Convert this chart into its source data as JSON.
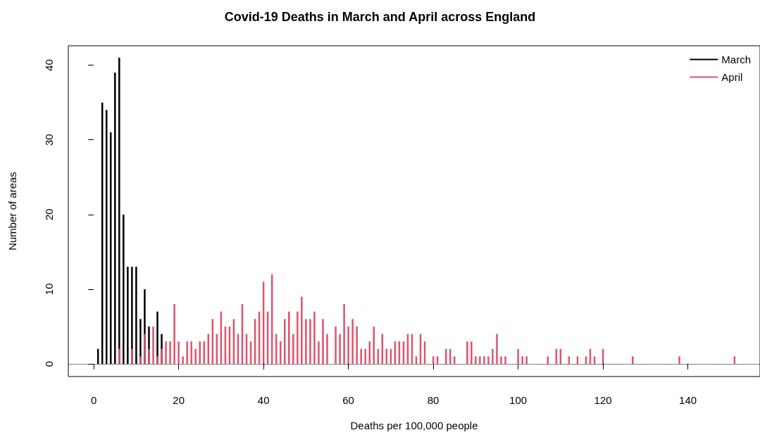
{
  "chart_data": {
    "type": "bar",
    "title": "Covid-19 Deaths in March and April across England",
    "xlabel": "Deaths per 100,000 people",
    "ylabel": "Number of areas",
    "series": [
      {
        "name": "March",
        "color": "#000000",
        "x": [
          1,
          2,
          3,
          4,
          5,
          6,
          7,
          8,
          9,
          10,
          11,
          12,
          13,
          15,
          16
        ],
        "values": [
          2,
          35,
          34,
          31,
          39,
          41,
          20,
          13,
          13,
          13,
          6,
          10,
          5,
          7,
          4
        ]
      },
      {
        "name": "April",
        "color": "#df536b",
        "x": [
          6,
          9,
          11,
          12,
          13,
          14,
          15,
          16,
          17,
          18,
          19,
          20,
          21,
          22,
          23,
          24,
          25,
          26,
          27,
          28,
          29,
          30,
          31,
          32,
          33,
          34,
          35,
          36,
          37,
          38,
          39,
          40,
          41,
          42,
          43,
          44,
          45,
          46,
          47,
          48,
          49,
          50,
          51,
          52,
          53,
          54,
          55,
          57,
          58,
          59,
          60,
          61,
          62,
          63,
          64,
          65,
          66,
          67,
          68,
          69,
          70,
          71,
          72,
          73,
          74,
          75,
          76,
          77,
          78,
          80,
          81,
          83,
          84,
          85,
          88,
          89,
          90,
          91,
          92,
          93,
          94,
          95,
          96,
          97,
          100,
          101,
          102,
          107,
          109,
          110,
          112,
          114,
          116,
          117,
          118,
          120,
          127,
          138,
          151
        ],
        "values": [
          2,
          2,
          1,
          4,
          2,
          5,
          1,
          2,
          3,
          3,
          8,
          3,
          1,
          3,
          3,
          2,
          3,
          3,
          4,
          6,
          4,
          7,
          5,
          5,
          6,
          4,
          8,
          4,
          3,
          6,
          7,
          11,
          7,
          12,
          4,
          3,
          6,
          7,
          4,
          7,
          9,
          6,
          6,
          7,
          3,
          6,
          4,
          5,
          4,
          8,
          5,
          6,
          5,
          2,
          2,
          3,
          5,
          2,
          4,
          2,
          2,
          3,
          3,
          3,
          4,
          4,
          1,
          4,
          3,
          1,
          1,
          2,
          2,
          1,
          3,
          3,
          1,
          1,
          1,
          1,
          2,
          4,
          1,
          1,
          2,
          1,
          1,
          1,
          2,
          2,
          1,
          1,
          1,
          2,
          1,
          2,
          1,
          1,
          1
        ]
      }
    ],
    "xlim": [
      -6,
      157
    ],
    "xticks": [
      0,
      20,
      40,
      60,
      80,
      100,
      120,
      140
    ],
    "ylim": [
      -1.7,
      42.6
    ],
    "yticks": [
      0,
      10,
      20,
      30,
      40
    ],
    "ref_lines": [
      {
        "axis": "y",
        "value": 0,
        "color": "#000000",
        "line_style": "dotted"
      }
    ],
    "grid": false,
    "legend": "top right"
  }
}
